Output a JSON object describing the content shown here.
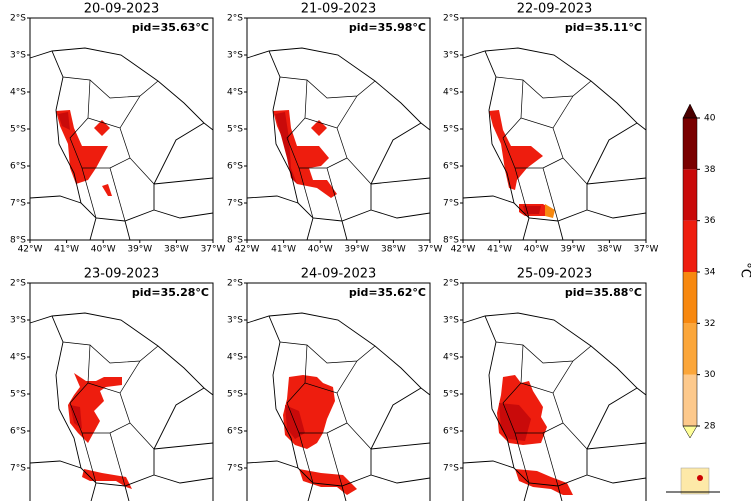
{
  "panels": [
    {
      "title": "20-09-2023",
      "pid": "pid=35.63°C"
    },
    {
      "title": "21-09-2023",
      "pid": "pid=35.98°C"
    },
    {
      "title": "22-09-2023",
      "pid": "pid=35.11°C"
    },
    {
      "title": "23-09-2023",
      "pid": "pid=35.28°C"
    },
    {
      "title": "24-09-2023",
      "pid": "pid=35.62°C"
    },
    {
      "title": "25-09-2023",
      "pid": "pid=35.88°C"
    }
  ],
  "map_axes": {
    "xlim": [
      -42,
      -37
    ],
    "ylim": [
      -8,
      -2
    ],
    "xticks": [
      {
        "value": -42,
        "label": "42°W"
      },
      {
        "value": -41,
        "label": "41°W"
      },
      {
        "value": -40,
        "label": "40°W"
      },
      {
        "value": -39,
        "label": "39°W"
      },
      {
        "value": -38,
        "label": "38°W"
      },
      {
        "value": -37,
        "label": "37°W"
      }
    ],
    "yticks": [
      {
        "value": -2,
        "label": "2°S"
      },
      {
        "value": -3,
        "label": "3°S"
      },
      {
        "value": -4,
        "label": "4°S"
      },
      {
        "value": -5,
        "label": "5°S"
      },
      {
        "value": -6,
        "label": "6°S"
      },
      {
        "value": -7,
        "label": "7°S"
      },
      {
        "value": -8,
        "label": "8°S"
      }
    ]
  },
  "colorbar": {
    "label": "°C",
    "lim": [
      28,
      40
    ],
    "ticks": [
      28,
      30,
      32,
      34,
      36,
      38,
      40
    ],
    "colors": [
      "#fdc98c",
      "#fba63a",
      "#f7880f",
      "#ee1d0e",
      "#c90a0a",
      "#7a0000"
    ],
    "under_color": "#ffff99",
    "over_color": "#4a0000"
  }
}
